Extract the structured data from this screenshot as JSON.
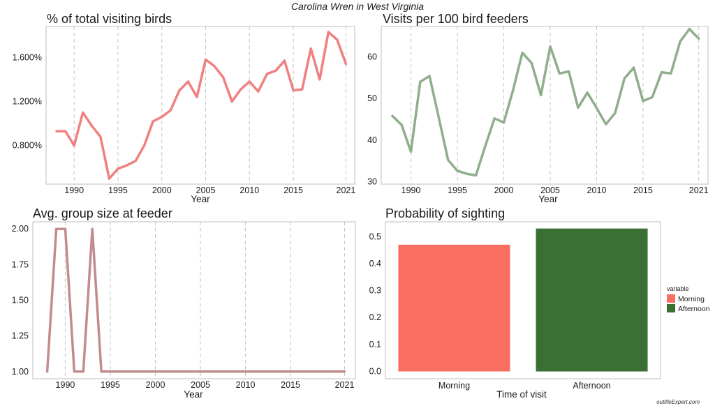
{
  "figure_title": "Carolina Wren in West Virginia",
  "watermark": "outlifeExpert.com",
  "colors": {
    "pct_line": "#f08080",
    "visits_line": "#8fae8b",
    "group_line": "#c38b8b",
    "morning": "#fa6e61",
    "afternoon": "#3a7034"
  },
  "chart_data": [
    {
      "type": "line",
      "title": "% of total visiting birds",
      "xlabel": "Year",
      "ylabel": "",
      "y_format": "percent_3dp",
      "x_ticks": [
        1990,
        1995,
        2000,
        2005,
        2010,
        2015,
        2021
      ],
      "y_ticks": [
        0.8,
        1.2,
        1.6
      ],
      "xlim": [
        1986.8,
        2022
      ],
      "ylim": [
        0.45,
        1.88
      ],
      "grid": "vertical-dashed",
      "x": [
        1988,
        1989,
        1990,
        1991,
        1992,
        1993,
        1994,
        1995,
        1996,
        1997,
        1998,
        1999,
        2000,
        2001,
        2002,
        2003,
        2004,
        2005,
        2006,
        2007,
        2008,
        2009,
        2010,
        2011,
        2012,
        2013,
        2014,
        2015,
        2016,
        2017,
        2018,
        2019,
        2020,
        2021
      ],
      "values": [
        0.93,
        0.93,
        0.8,
        1.1,
        0.98,
        0.88,
        0.5,
        0.59,
        0.62,
        0.66,
        0.8,
        1.02,
        1.06,
        1.12,
        1.3,
        1.38,
        1.24,
        1.58,
        1.52,
        1.42,
        1.2,
        1.31,
        1.38,
        1.29,
        1.45,
        1.48,
        1.57,
        1.3,
        1.31,
        1.68,
        1.4,
        1.83,
        1.76,
        1.54
      ]
    },
    {
      "type": "line",
      "title": "Visits per 100 bird feeders",
      "xlabel": "Year",
      "ylabel": "",
      "x_ticks": [
        1990,
        1995,
        2000,
        2005,
        2010,
        2015,
        2021
      ],
      "y_ticks": [
        30,
        40,
        50,
        60
      ],
      "xlim": [
        1986.8,
        2022
      ],
      "ylim": [
        29.4,
        67.3
      ],
      "grid": "vertical-dashed",
      "x": [
        1988,
        1989,
        1990,
        1991,
        1992,
        1993,
        1994,
        1995,
        1996,
        1997,
        1998,
        1999,
        2000,
        2001,
        2002,
        2003,
        2004,
        2005,
        2006,
        2007,
        2008,
        2009,
        2010,
        2011,
        2012,
        2013,
        2014,
        2015,
        2016,
        2017,
        2018,
        2019,
        2020,
        2021
      ],
      "values": [
        45.8,
        43.6,
        37.2,
        54.0,
        55.4,
        45.4,
        35.2,
        32.6,
        31.9,
        31.5,
        38.5,
        45.2,
        44.2,
        52.0,
        61.0,
        58.5,
        50.8,
        62.5,
        56.0,
        56.5,
        47.8,
        51.4,
        47.7,
        43.8,
        46.5,
        54.8,
        57.4,
        49.4,
        50.3,
        56.3,
        56.0,
        63.7,
        66.7,
        64.4
      ]
    },
    {
      "type": "line",
      "title": "Avg. group size at feeder",
      "xlabel": "Year",
      "ylabel": "",
      "y_format": "fixed_2dp",
      "x_ticks": [
        1990,
        1995,
        2000,
        2005,
        2010,
        2015,
        2021
      ],
      "y_ticks": [
        1.0,
        1.25,
        1.5,
        1.75,
        2.0
      ],
      "xlim": [
        1986.4,
        2022.2
      ],
      "ylim": [
        0.95,
        2.05
      ],
      "grid": "vertical-dashed",
      "x": [
        1988,
        1989,
        1990,
        1991,
        1992,
        1993,
        1994,
        1995,
        1996,
        1997,
        1998,
        1999,
        2000,
        2001,
        2002,
        2003,
        2004,
        2005,
        2006,
        2007,
        2008,
        2009,
        2010,
        2011,
        2012,
        2013,
        2014,
        2015,
        2016,
        2017,
        2018,
        2019,
        2020,
        2021
      ],
      "values": [
        1,
        2,
        2,
        1,
        1,
        2,
        1,
        1,
        1,
        1,
        1,
        1,
        1,
        1,
        1,
        1,
        1,
        1,
        1,
        1,
        1,
        1,
        1,
        1,
        1,
        1,
        1,
        1,
        1,
        1,
        1,
        1,
        1,
        1
      ]
    },
    {
      "type": "bar",
      "title": "Probability of sighting",
      "xlabel": "Time of visit",
      "ylabel": "",
      "categories": [
        "Morning",
        "Afternoon"
      ],
      "values": [
        0.47,
        0.53
      ],
      "y_ticks": [
        0.0,
        0.1,
        0.2,
        0.3,
        0.4,
        0.5
      ],
      "ylim": [
        -0.027,
        0.555
      ],
      "legend": {
        "title": "variable",
        "position": "right",
        "entries": [
          "Morning",
          "Afternoon"
        ]
      }
    }
  ]
}
